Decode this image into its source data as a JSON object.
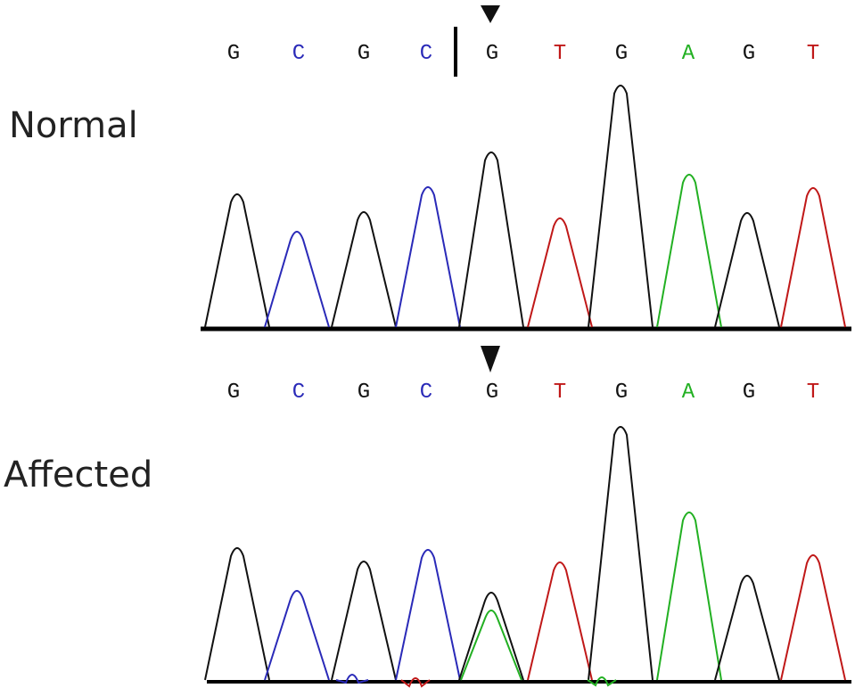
{
  "panels": [
    {
      "label": "Normal",
      "bases": [
        "G",
        "C",
        "G",
        "C",
        "G",
        "T",
        "G",
        "A",
        "G",
        "T"
      ]
    },
    {
      "label": "Affected",
      "bases": [
        "G",
        "C",
        "G",
        "C",
        "G",
        "T",
        "G",
        "A",
        "G",
        "T"
      ]
    }
  ],
  "base_colors": {
    "G": "#111111",
    "C": "#2a2ab8",
    "T": "#c01818",
    "A": "#22b022"
  }
}
